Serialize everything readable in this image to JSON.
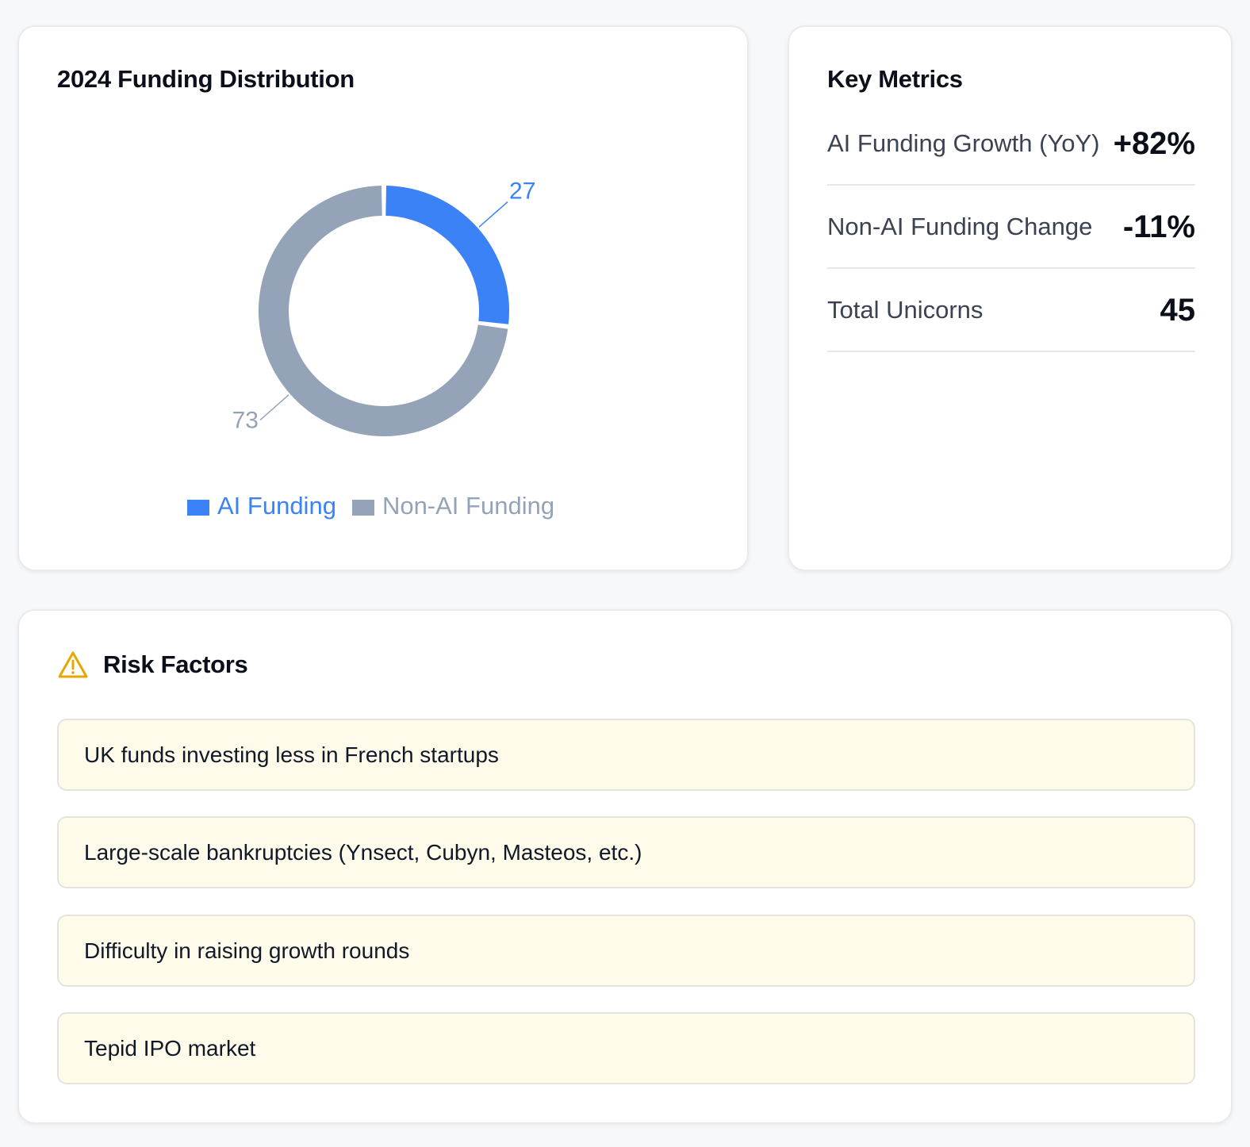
{
  "funding_card": {
    "title": "2024 Funding Distribution"
  },
  "chart_data": {
    "type": "pie",
    "variant": "donut",
    "categories": [
      "AI Funding",
      "Non-AI Funding"
    ],
    "values": [
      27,
      73
    ],
    "colors": [
      "#3b82f6",
      "#94a3b8"
    ],
    "legend": "bottom",
    "title": ""
  },
  "metrics_card": {
    "title": "Key Metrics",
    "items": [
      {
        "label": "AI Funding Growth (YoY)",
        "value": "+82%"
      },
      {
        "label": "Non-AI Funding Change",
        "value": "-11%"
      },
      {
        "label": "Total Unicorns",
        "value": "45"
      }
    ]
  },
  "risk_card": {
    "title": "Risk Factors",
    "icon": "warning-triangle-icon",
    "icon_color": "#e6a800",
    "item_bg": "#fefbea",
    "items": [
      "UK funds investing less in French startups",
      "Large-scale bankruptcies (Ynsect, Cubyn, Masteos, etc.)",
      "Difficulty in raising growth rounds",
      "Tepid IPO market"
    ]
  }
}
